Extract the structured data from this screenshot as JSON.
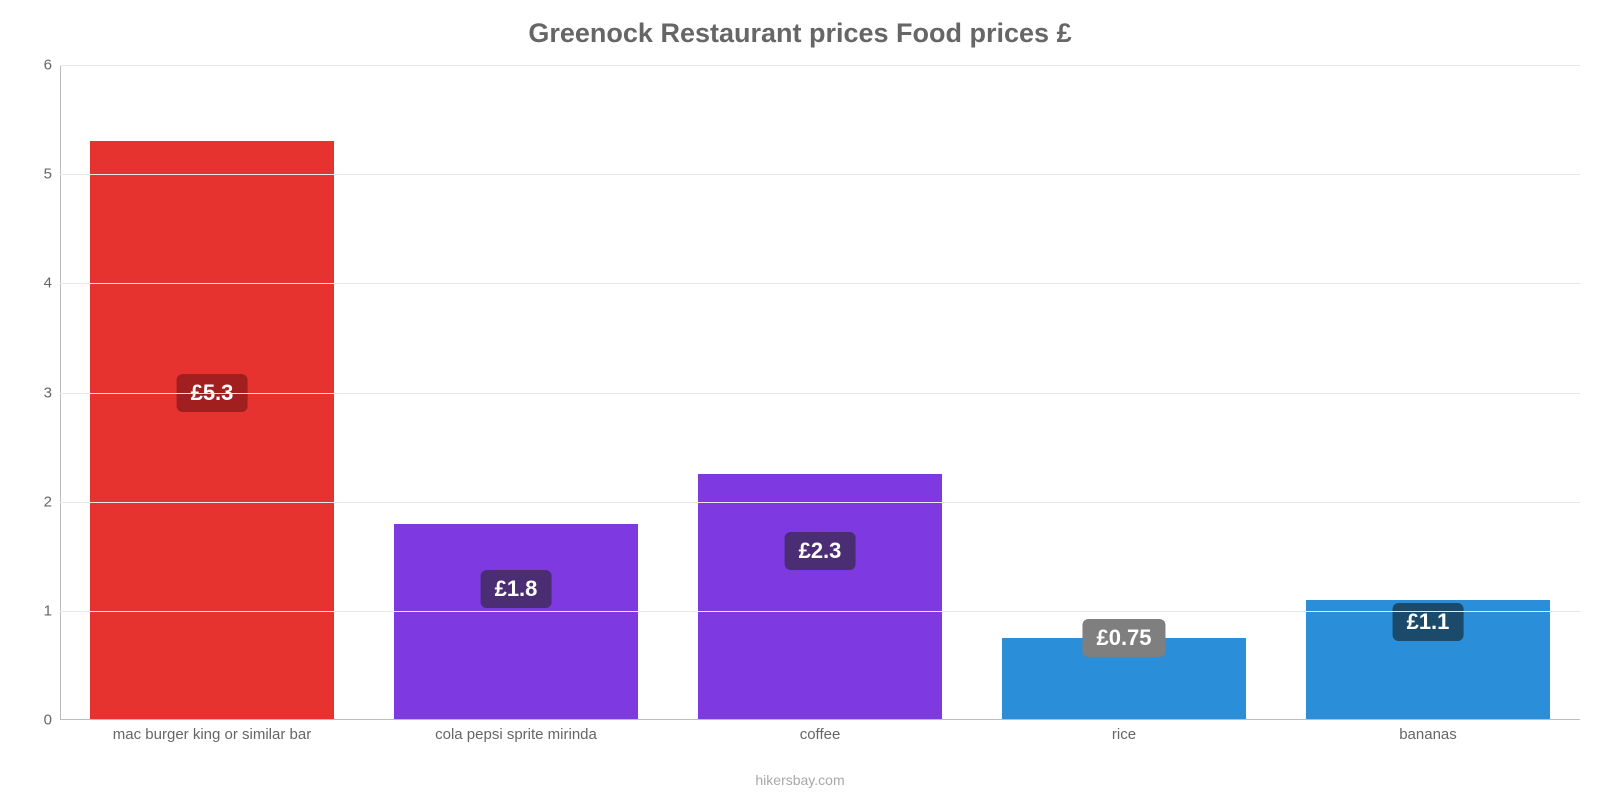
{
  "chart": {
    "type": "bar",
    "title": "Greenock Restaurant prices Food prices £",
    "title_fontsize": 27,
    "title_color": "#666666",
    "background_color": "#ffffff",
    "grid_color": "#e8e8e8",
    "axis_color": "#bdbdbd",
    "tick_label_color": "#666666",
    "tick_fontsize": 15,
    "badge_fontsize": 22,
    "y": {
      "min": 0,
      "max": 6,
      "ticks": [
        0,
        1,
        2,
        3,
        4,
        5,
        6
      ]
    },
    "bar_width_ratio": 0.8,
    "items": [
      {
        "category": "mac burger king or similar bar",
        "value": 5.3,
        "value_label": "£5.3",
        "bar_color": "#e6332f",
        "badge_bg": "#a11f1f",
        "badge_text_color": "#ffffff",
        "label_anchor_value": 3.0
      },
      {
        "category": "cola pepsi sprite mirinda",
        "value": 1.8,
        "value_label": "£1.8",
        "bar_color": "#7f39e0",
        "badge_bg": "#4a2d72",
        "badge_text_color": "#ffffff",
        "label_anchor_value": 1.2
      },
      {
        "category": "coffee",
        "value": 2.25,
        "value_label": "£2.3",
        "bar_color": "#7f39e0",
        "badge_bg": "#4a2d72",
        "badge_text_color": "#ffffff",
        "label_anchor_value": 1.55
      },
      {
        "category": "rice",
        "value": 0.75,
        "value_label": "£0.75",
        "bar_color": "#2a8ed8",
        "badge_bg": "#7f7f7f",
        "badge_text_color": "#ffffff",
        "label_anchor_value": 0.75
      },
      {
        "category": "bananas",
        "value": 1.1,
        "value_label": "£1.1",
        "bar_color": "#2a8ed8",
        "badge_bg": "#1b4a6b",
        "badge_text_color": "#ffffff",
        "label_anchor_value": 0.9
      }
    ],
    "source_label": "hikersbay.com",
    "source_color": "#a8a8a8"
  }
}
